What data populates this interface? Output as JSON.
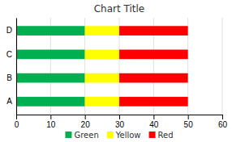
{
  "chart_data": {
    "type": "bar",
    "orientation": "horizontal",
    "stacked": true,
    "title": "Chart Title",
    "categories": [
      "A",
      "B",
      "C",
      "D"
    ],
    "series": [
      {
        "name": "Green",
        "color": "#00B050",
        "values": [
          20,
          20,
          20,
          20
        ]
      },
      {
        "name": "Yellow",
        "color": "#FFFF00",
        "values": [
          10,
          10,
          10,
          10
        ]
      },
      {
        "name": "Red",
        "color": "#FF0000",
        "values": [
          20,
          20,
          20,
          20
        ]
      }
    ],
    "xlim": [
      0,
      60
    ],
    "xticks": [
      0,
      10,
      20,
      30,
      40,
      50,
      60
    ],
    "grid": true,
    "legend": "bottom"
  }
}
